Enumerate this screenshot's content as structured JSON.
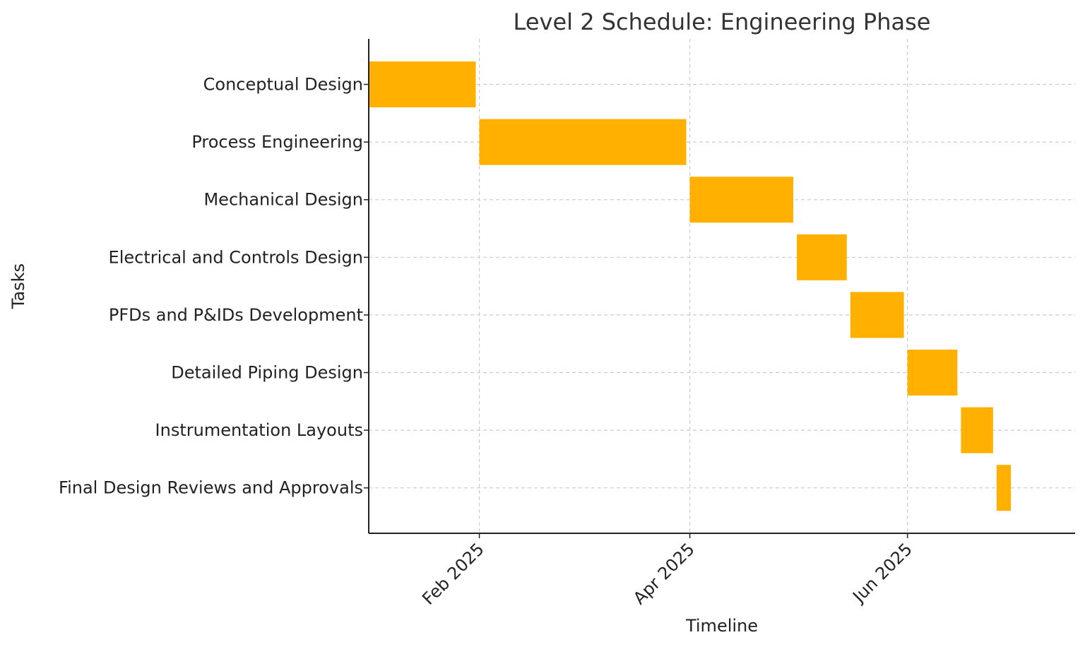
{
  "chart_data": {
    "type": "bar",
    "orientation": "horizontal-gantt",
    "title": "Level 2 Schedule: Engineering Phase",
    "xlabel": "Timeline",
    "ylabel": "Tasks",
    "grid": true,
    "bar_color": "#FFB000",
    "xlim": [
      "2025-01-01",
      "2025-07-18"
    ],
    "xticks": [
      {
        "date": "2025-02-01",
        "label": "Feb 2025"
      },
      {
        "date": "2025-04-01",
        "label": "Apr 2025"
      },
      {
        "date": "2025-06-01",
        "label": "Jun 2025"
      }
    ],
    "tasks": [
      {
        "name": "Conceptual Design",
        "start": "2025-01-01",
        "end": "2025-01-31"
      },
      {
        "name": "Process Engineering",
        "start": "2025-02-01",
        "end": "2025-03-31"
      },
      {
        "name": "Mechanical Design",
        "start": "2025-04-01",
        "end": "2025-04-30"
      },
      {
        "name": "Electrical and Controls Design",
        "start": "2025-05-01",
        "end": "2025-05-15"
      },
      {
        "name": "PFDs and P&IDs Development",
        "start": "2025-05-16",
        "end": "2025-05-31"
      },
      {
        "name": "Detailed Piping Design",
        "start": "2025-06-01",
        "end": "2025-06-15"
      },
      {
        "name": "Instrumentation Layouts",
        "start": "2025-06-16",
        "end": "2025-06-25"
      },
      {
        "name": "Final Design Reviews and Approvals",
        "start": "2025-06-26",
        "end": "2025-06-30"
      }
    ]
  }
}
